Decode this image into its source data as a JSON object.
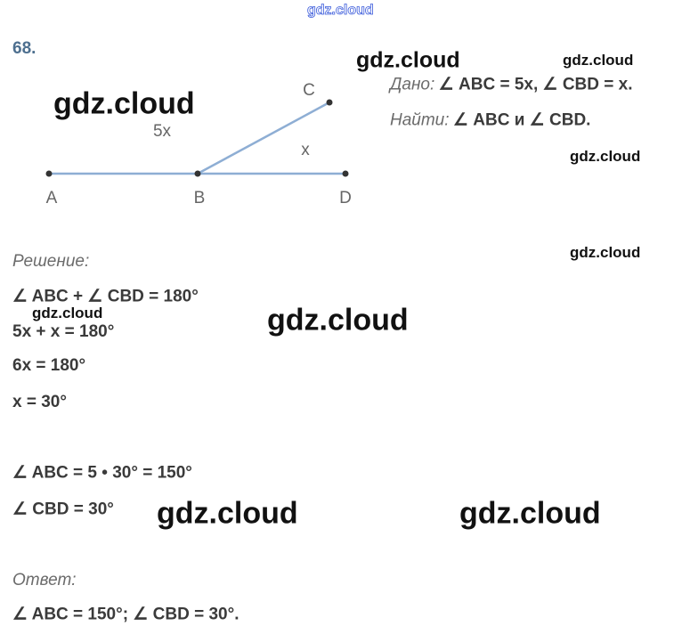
{
  "problem_number": "68.",
  "diagram": {
    "points": [
      "A",
      "B",
      "C",
      "D"
    ],
    "angle_abc": "5x",
    "angle_cbd": "x"
  },
  "given": {
    "label": "Дано:",
    "text": "∠ ABC = 5x, ∠ CBD = x."
  },
  "find": {
    "label": "Найти:",
    "text": "∠ ABC и ∠ CBD."
  },
  "solution": {
    "label": "Решение:",
    "lines": [
      "∠ ABC + ∠ CBD = 180°",
      "5x + x = 180°",
      "6x = 180°",
      "x = 30°",
      "∠ ABC = 5 • 30° = 150°",
      "∠ CBD = 30°"
    ]
  },
  "answer": {
    "label": "Ответ:",
    "text": "∠ ABC = 150°; ∠ CBD = 30°."
  },
  "watermarks": [
    "gdz.cloud",
    "gdz.cloud",
    "gdz.cloud",
    "gdz.cloud",
    "gdz.cloud",
    "gdz.cloud",
    "gdz.cloud",
    "gdz.cloud",
    "gdz.cloud",
    "gdz.cloud"
  ]
}
